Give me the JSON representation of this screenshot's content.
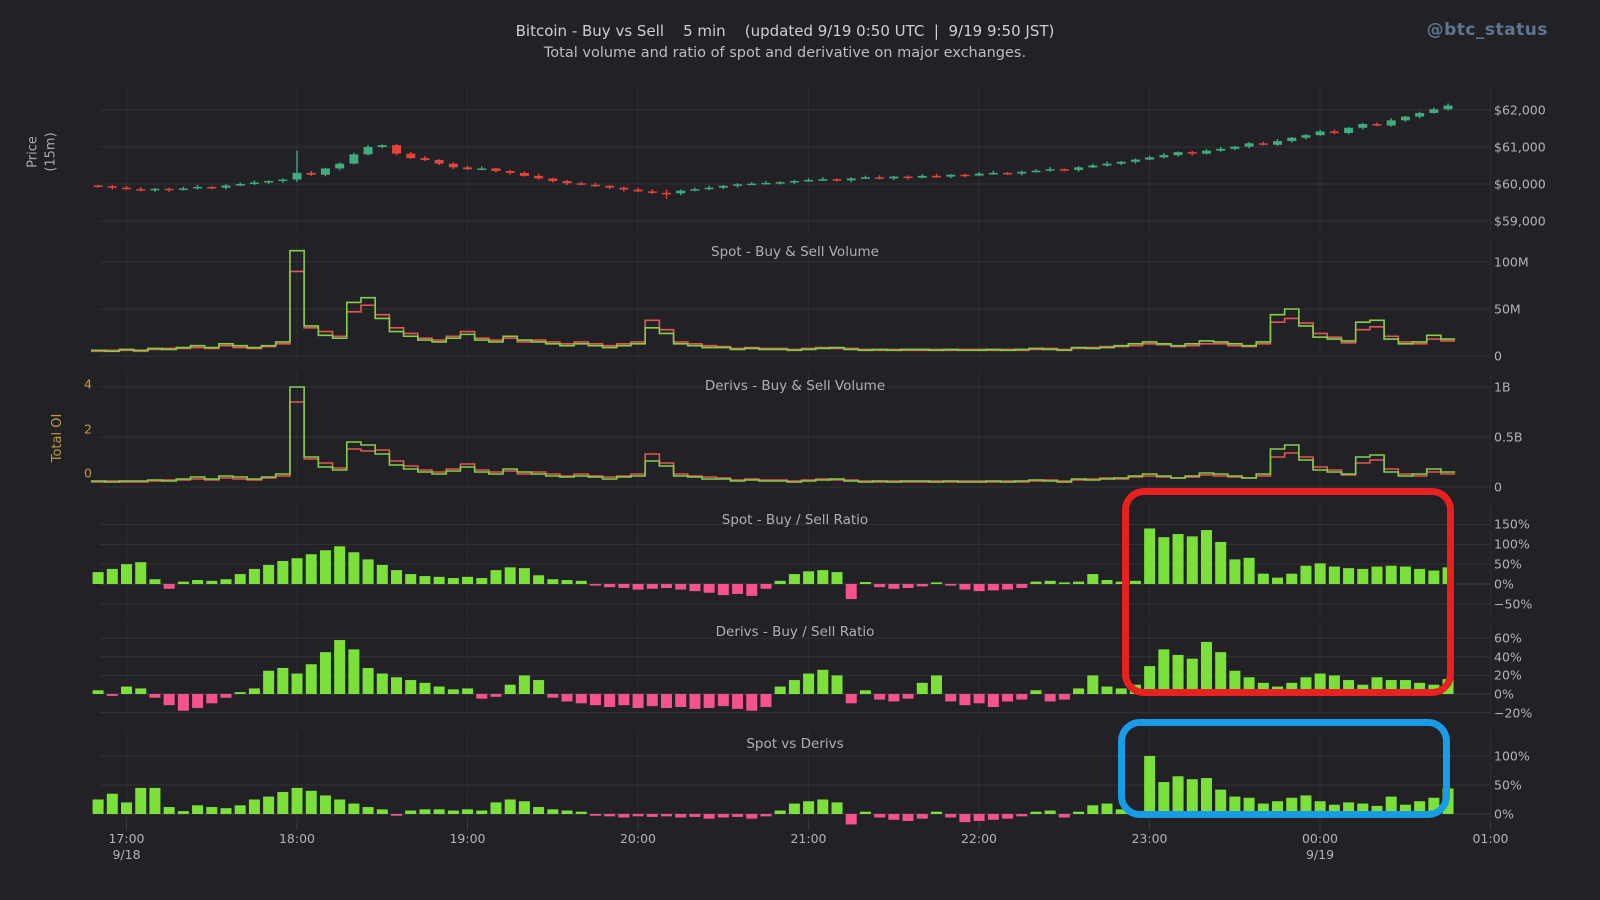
{
  "header": {
    "title": "Bitcoin - Buy vs Sell    5 min    (updated 9/19 0:50 UTC  |  9/19 9:50 JST)",
    "subtitle": "Total volume and ratio of spot and derivative on major exchanges.",
    "handle": "@btc_status"
  },
  "labels": {
    "price_axis": "Price\n(15m)",
    "total_oi": "Total OI"
  },
  "colors": {
    "background": "#222226",
    "grid": "#313237",
    "grid_vertical": "#2c2d31",
    "zero_line": "#3a3b40",
    "candle_up": "#42ab7d",
    "candle_down": "#e5443e",
    "volume_buy": "#82cf4a",
    "volume_sell": "#e2574f",
    "ratio_positive": "#7be03a",
    "ratio_negative": "#f4538f",
    "axis_text": "#b3b3b3",
    "oi_axis": "#c49a3e",
    "handle_text": "#5e7591",
    "red_box": "#e82020",
    "blue_box": "#189ce8"
  },
  "x_axis": {
    "interval_min": 5,
    "hour_labels": [
      {
        "text": "17:00",
        "date": "9/18"
      },
      {
        "text": "18:00"
      },
      {
        "text": "19:00"
      },
      {
        "text": "20:00"
      },
      {
        "text": "21:00"
      },
      {
        "text": "22:00"
      },
      {
        "text": "23:00"
      },
      {
        "text": "00:00",
        "date": "9/19"
      },
      {
        "text": "01:00"
      }
    ]
  },
  "annotations": {
    "red_box": {
      "shape": "rounded-rect",
      "color": "#e82020",
      "around": "right portion of both Buy/Sell Ratio panels"
    },
    "blue_box": {
      "shape": "rounded-rect",
      "color": "#189ce8",
      "around": "right portion of Spot vs Derivs panel"
    }
  },
  "chart_data": [
    {
      "type": "candlestick",
      "panel": "price",
      "axis_label": "Price (15m)",
      "yticks": [
        {
          "label": "$62,000",
          "v": 62000
        },
        {
          "label": "$61,000",
          "v": 61000
        },
        {
          "label": "$60,000",
          "v": 60000
        },
        {
          "label": "$59,000",
          "v": 59000
        }
      ],
      "ylim": [
        58900,
        62550
      ],
      "open_seed": 59960,
      "closes": [
        59940,
        59900,
        59860,
        59830,
        59870,
        59840,
        59880,
        59920,
        59900,
        59960,
        60000,
        60040,
        60080,
        60120,
        60300,
        60250,
        60420,
        60550,
        60800,
        61000,
        61050,
        60820,
        60700,
        60650,
        60550,
        60450,
        60400,
        60420,
        60350,
        60300,
        60220,
        60150,
        60080,
        60020,
        59980,
        59950,
        59900,
        59850,
        59800,
        59760,
        59750,
        59820,
        59860,
        59900,
        59950,
        59990,
        60010,
        60030,
        60050,
        60080,
        60110,
        60130,
        60100,
        60150,
        60180,
        60150,
        60200,
        60170,
        60220,
        60200,
        60250,
        60230,
        60280,
        60300,
        60280,
        60330,
        60360,
        60400,
        60380,
        60450,
        60500,
        60550,
        60600,
        60660,
        60720,
        60780,
        60860,
        60820,
        60900,
        60950,
        61010,
        61100,
        61060,
        61160,
        61250,
        61320,
        61420,
        61380,
        61520,
        61620,
        61580,
        61720,
        61820,
        61920,
        62020,
        62120
      ],
      "wick_overrides": {
        "14": [
          60900,
          60060
        ],
        "40": [
          59850,
          59600
        ]
      }
    },
    {
      "type": "step-line",
      "title": "Spot - Buy & Sell Volume",
      "unit": "M USD",
      "yticks": [
        {
          "label": "100M",
          "v": 100
        },
        {
          "label": "50M",
          "v": 50
        },
        {
          "label": "0",
          "v": 0
        }
      ],
      "series": [
        {
          "name": "buy",
          "values": [
            6,
            5,
            7,
            6,
            8,
            7,
            9,
            11,
            9,
            13,
            11,
            9,
            11,
            15,
            112,
            32,
            22,
            19,
            57,
            62,
            40,
            26,
            21,
            17,
            15,
            19,
            23,
            17,
            15,
            21,
            17,
            15,
            13,
            11,
            13,
            11,
            9,
            11,
            13,
            30,
            24,
            13,
            11,
            9,
            9,
            7,
            8,
            7,
            7,
            6,
            7,
            8,
            9,
            7,
            6,
            7,
            6,
            7,
            7,
            6,
            7,
            6,
            6,
            7,
            6,
            7,
            8,
            7,
            6,
            9,
            8,
            9,
            11,
            13,
            15,
            13,
            11,
            13,
            16,
            15,
            13,
            11,
            15,
            44,
            50,
            32,
            20,
            18,
            16,
            36,
            38,
            18,
            13,
            15,
            22,
            18
          ]
        },
        {
          "name": "sell",
          "values": [
            5,
            6,
            6,
            5,
            7,
            8,
            8,
            9,
            8,
            11,
            9,
            8,
            10,
            13,
            90,
            30,
            26,
            21,
            47,
            54,
            44,
            30,
            24,
            19,
            17,
            21,
            26,
            19,
            17,
            19,
            15,
            17,
            15,
            13,
            15,
            13,
            11,
            13,
            15,
            38,
            28,
            15,
            13,
            11,
            10,
            8,
            9,
            8,
            8,
            7,
            8,
            9,
            8,
            8,
            7,
            6,
            7,
            6,
            6,
            7,
            6,
            7,
            7,
            6,
            7,
            6,
            7,
            8,
            7,
            8,
            9,
            10,
            10,
            11,
            13,
            12,
            10,
            11,
            13,
            13,
            11,
            10,
            13,
            36,
            40,
            35,
            24,
            20,
            14,
            28,
            31,
            21,
            15,
            13,
            18,
            16
          ]
        }
      ]
    },
    {
      "type": "step-line",
      "title": "Derivs - Buy & Sell Volume",
      "unit": "B USD",
      "yticks": [
        {
          "label": "1B",
          "v": 1
        },
        {
          "label": "0.5B",
          "v": 0.5
        },
        {
          "label": "0",
          "v": 0
        }
      ],
      "left_axis": {
        "label": "Total OI",
        "ticks": [
          {
            "label": "4",
            "v": 4
          },
          {
            "label": "2",
            "v": 2
          },
          {
            "label": "0",
            "v": 0
          }
        ]
      },
      "series": [
        {
          "name": "buy",
          "values": [
            0.06,
            0.05,
            0.06,
            0.06,
            0.07,
            0.06,
            0.08,
            0.1,
            0.08,
            0.11,
            0.1,
            0.08,
            0.1,
            0.13,
            1.0,
            0.3,
            0.2,
            0.17,
            0.45,
            0.42,
            0.33,
            0.22,
            0.18,
            0.15,
            0.13,
            0.16,
            0.2,
            0.15,
            0.13,
            0.18,
            0.15,
            0.13,
            0.11,
            0.1,
            0.11,
            0.1,
            0.08,
            0.1,
            0.11,
            0.26,
            0.21,
            0.11,
            0.1,
            0.08,
            0.08,
            0.06,
            0.07,
            0.06,
            0.06,
            0.05,
            0.06,
            0.07,
            0.08,
            0.06,
            0.05,
            0.06,
            0.05,
            0.06,
            0.06,
            0.05,
            0.06,
            0.05,
            0.05,
            0.06,
            0.05,
            0.06,
            0.07,
            0.06,
            0.05,
            0.08,
            0.07,
            0.08,
            0.09,
            0.11,
            0.13,
            0.11,
            0.09,
            0.11,
            0.14,
            0.13,
            0.11,
            0.09,
            0.13,
            0.38,
            0.42,
            0.27,
            0.17,
            0.15,
            0.13,
            0.3,
            0.32,
            0.15,
            0.11,
            0.13,
            0.18,
            0.15
          ]
        },
        {
          "name": "sell",
          "values": [
            0.05,
            0.06,
            0.05,
            0.05,
            0.06,
            0.07,
            0.07,
            0.08,
            0.07,
            0.09,
            0.08,
            0.07,
            0.09,
            0.11,
            0.85,
            0.28,
            0.24,
            0.19,
            0.38,
            0.36,
            0.37,
            0.26,
            0.21,
            0.17,
            0.15,
            0.18,
            0.23,
            0.17,
            0.15,
            0.16,
            0.13,
            0.15,
            0.13,
            0.11,
            0.13,
            0.11,
            0.1,
            0.11,
            0.13,
            0.33,
            0.24,
            0.13,
            0.11,
            0.1,
            0.09,
            0.07,
            0.08,
            0.07,
            0.07,
            0.06,
            0.07,
            0.08,
            0.07,
            0.07,
            0.06,
            0.05,
            0.06,
            0.05,
            0.05,
            0.06,
            0.05,
            0.06,
            0.06,
            0.05,
            0.06,
            0.05,
            0.06,
            0.07,
            0.06,
            0.07,
            0.08,
            0.09,
            0.08,
            0.1,
            0.11,
            0.1,
            0.09,
            0.1,
            0.12,
            0.11,
            0.1,
            0.09,
            0.11,
            0.3,
            0.34,
            0.3,
            0.2,
            0.17,
            0.12,
            0.24,
            0.27,
            0.18,
            0.13,
            0.11,
            0.15,
            0.13
          ]
        }
      ]
    },
    {
      "type": "bar",
      "title": "Spot - Buy / Sell Ratio",
      "unit": "%",
      "yticks": [
        {
          "label": "150%",
          "v": 150
        },
        {
          "label": "100%",
          "v": 100
        },
        {
          "label": "50%",
          "v": 50
        },
        {
          "label": "0%",
          "v": 0
        },
        {
          "label": "−50%",
          "v": -50
        }
      ],
      "values": [
        30,
        38,
        50,
        55,
        12,
        -12,
        6,
        10,
        8,
        12,
        25,
        38,
        48,
        58,
        65,
        75,
        85,
        95,
        80,
        62,
        48,
        35,
        25,
        20,
        18,
        15,
        18,
        15,
        35,
        42,
        40,
        22,
        12,
        10,
        8,
        -4,
        -8,
        -10,
        -14,
        -12,
        -10,
        -14,
        -18,
        -22,
        -28,
        -25,
        -30,
        -12,
        8,
        25,
        32,
        35,
        30,
        -38,
        5,
        -8,
        -12,
        -10,
        -6,
        4,
        -4,
        -14,
        -18,
        -16,
        -14,
        -10,
        6,
        8,
        4,
        6,
        25,
        10,
        6,
        8,
        140,
        118,
        126,
        120,
        136,
        106,
        62,
        66,
        26,
        16,
        26,
        46,
        52,
        44,
        40,
        38,
        44,
        46,
        44,
        38,
        34,
        42
      ]
    },
    {
      "type": "bar",
      "title": "Derivs - Buy / Sell Ratio",
      "unit": "%",
      "yticks": [
        {
          "label": "60%",
          "v": 60
        },
        {
          "label": "40%",
          "v": 40
        },
        {
          "label": "20%",
          "v": 20
        },
        {
          "label": "0%",
          "v": 0
        },
        {
          "label": "−20%",
          "v": -20
        }
      ],
      "values": [
        4,
        -2,
        8,
        6,
        -4,
        -12,
        -18,
        -15,
        -10,
        -4,
        2,
        6,
        25,
        28,
        22,
        32,
        45,
        58,
        48,
        28,
        22,
        18,
        15,
        12,
        8,
        5,
        6,
        -5,
        -3,
        10,
        20,
        15,
        -4,
        -8,
        -10,
        -12,
        -14,
        -12,
        -15,
        -13,
        -15,
        -14,
        -16,
        -15,
        -13,
        -16,
        -18,
        -14,
        8,
        15,
        22,
        26,
        20,
        -10,
        4,
        -6,
        -8,
        -5,
        12,
        20,
        -8,
        -12,
        -10,
        -14,
        -8,
        -6,
        4,
        -8,
        -6,
        6,
        20,
        8,
        6,
        10,
        30,
        48,
        42,
        38,
        56,
        45,
        25,
        18,
        12,
        8,
        12,
        18,
        22,
        20,
        15,
        10,
        18,
        15,
        15,
        12,
        10,
        16
      ]
    },
    {
      "type": "bar",
      "title": "Spot vs Derivs",
      "unit": "%",
      "yticks": [
        {
          "label": "100%",
          "v": 100
        },
        {
          "label": "50%",
          "v": 50
        },
        {
          "label": "0%",
          "v": 0
        }
      ],
      "values": [
        25,
        35,
        20,
        45,
        45,
        12,
        5,
        15,
        12,
        10,
        15,
        25,
        30,
        38,
        45,
        40,
        32,
        25,
        18,
        12,
        8,
        -3,
        6,
        8,
        8,
        6,
        8,
        6,
        20,
        25,
        22,
        12,
        8,
        6,
        4,
        -3,
        -4,
        -6,
        -4,
        -5,
        -4,
        -6,
        -5,
        -8,
        -6,
        -5,
        -8,
        -4,
        6,
        18,
        22,
        25,
        20,
        -18,
        4,
        -6,
        -10,
        -12,
        -8,
        4,
        -6,
        -14,
        -12,
        -10,
        -8,
        -4,
        4,
        6,
        -6,
        4,
        15,
        18,
        8,
        4,
        100,
        55,
        65,
        60,
        62,
        42,
        30,
        28,
        18,
        22,
        28,
        32,
        22,
        16,
        20,
        18,
        14,
        30,
        16,
        22,
        28,
        44
      ]
    }
  ]
}
